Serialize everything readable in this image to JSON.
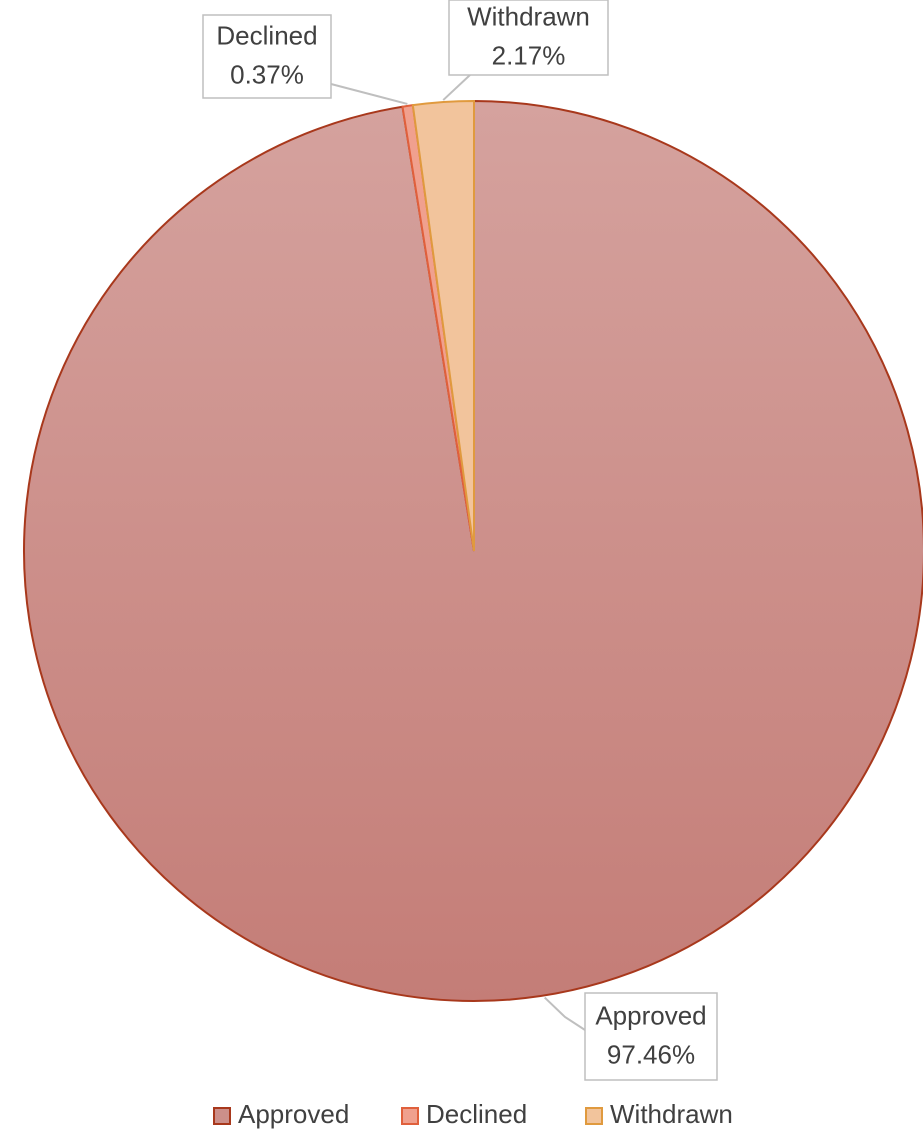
{
  "chart_data": {
    "type": "pie",
    "categories": [
      "Approved",
      "Declined",
      "Withdrawn"
    ],
    "values": [
      97.46,
      0.37,
      2.17
    ],
    "value_labels": [
      "97.46%",
      "0.37%",
      "2.17%"
    ],
    "colors": [
      "#cc8f8a",
      "#f0a08e",
      "#f2c49c"
    ],
    "edge_colors": [
      "#a8381c",
      "#e0603c",
      "#e09a3e"
    ],
    "legend": "bottom"
  }
}
